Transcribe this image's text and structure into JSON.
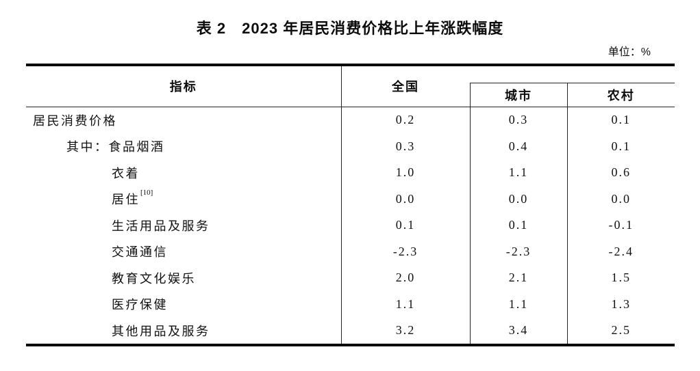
{
  "page": {
    "title": "表 2　2023 年居民消费价格比上年涨跌幅度",
    "unit_label": "单位：%"
  },
  "table": {
    "col_headers": {
      "indicator": "指标",
      "national": "全国",
      "city": "城市",
      "rural": "农村"
    },
    "rows": [
      {
        "label": "居民消费价格",
        "indent": 0,
        "national": "0.2",
        "city": "0.3",
        "rural": "0.1"
      },
      {
        "label": "其中：食品烟酒",
        "indent": 1,
        "national": "0.3",
        "city": "0.4",
        "rural": "0.1"
      },
      {
        "label": "衣着",
        "indent": 2,
        "national": "1.0",
        "city": "1.1",
        "rural": "0.6"
      },
      {
        "label": "居住",
        "sup": "[10]",
        "indent": 2,
        "national": "0.0",
        "city": "0.0",
        "rural": "0.0"
      },
      {
        "label": "生活用品及服务",
        "indent": 2,
        "national": "0.1",
        "city": "0.1",
        "rural": "-0.1"
      },
      {
        "label": "交通通信",
        "indent": 2,
        "national": "-2.3",
        "city": "-2.3",
        "rural": "-2.4"
      },
      {
        "label": "教育文化娱乐",
        "indent": 2,
        "national": "2.0",
        "city": "2.1",
        "rural": "1.5"
      },
      {
        "label": "医疗保健",
        "indent": 2,
        "national": "1.1",
        "city": "1.1",
        "rural": "1.3"
      },
      {
        "label": "其他用品及服务",
        "indent": 2,
        "national": "3.2",
        "city": "3.4",
        "rural": "2.5"
      }
    ],
    "colors": {
      "text": "#111111",
      "border_thick": "#000000",
      "border_thin": "#222222",
      "background": "#ffffff"
    }
  }
}
